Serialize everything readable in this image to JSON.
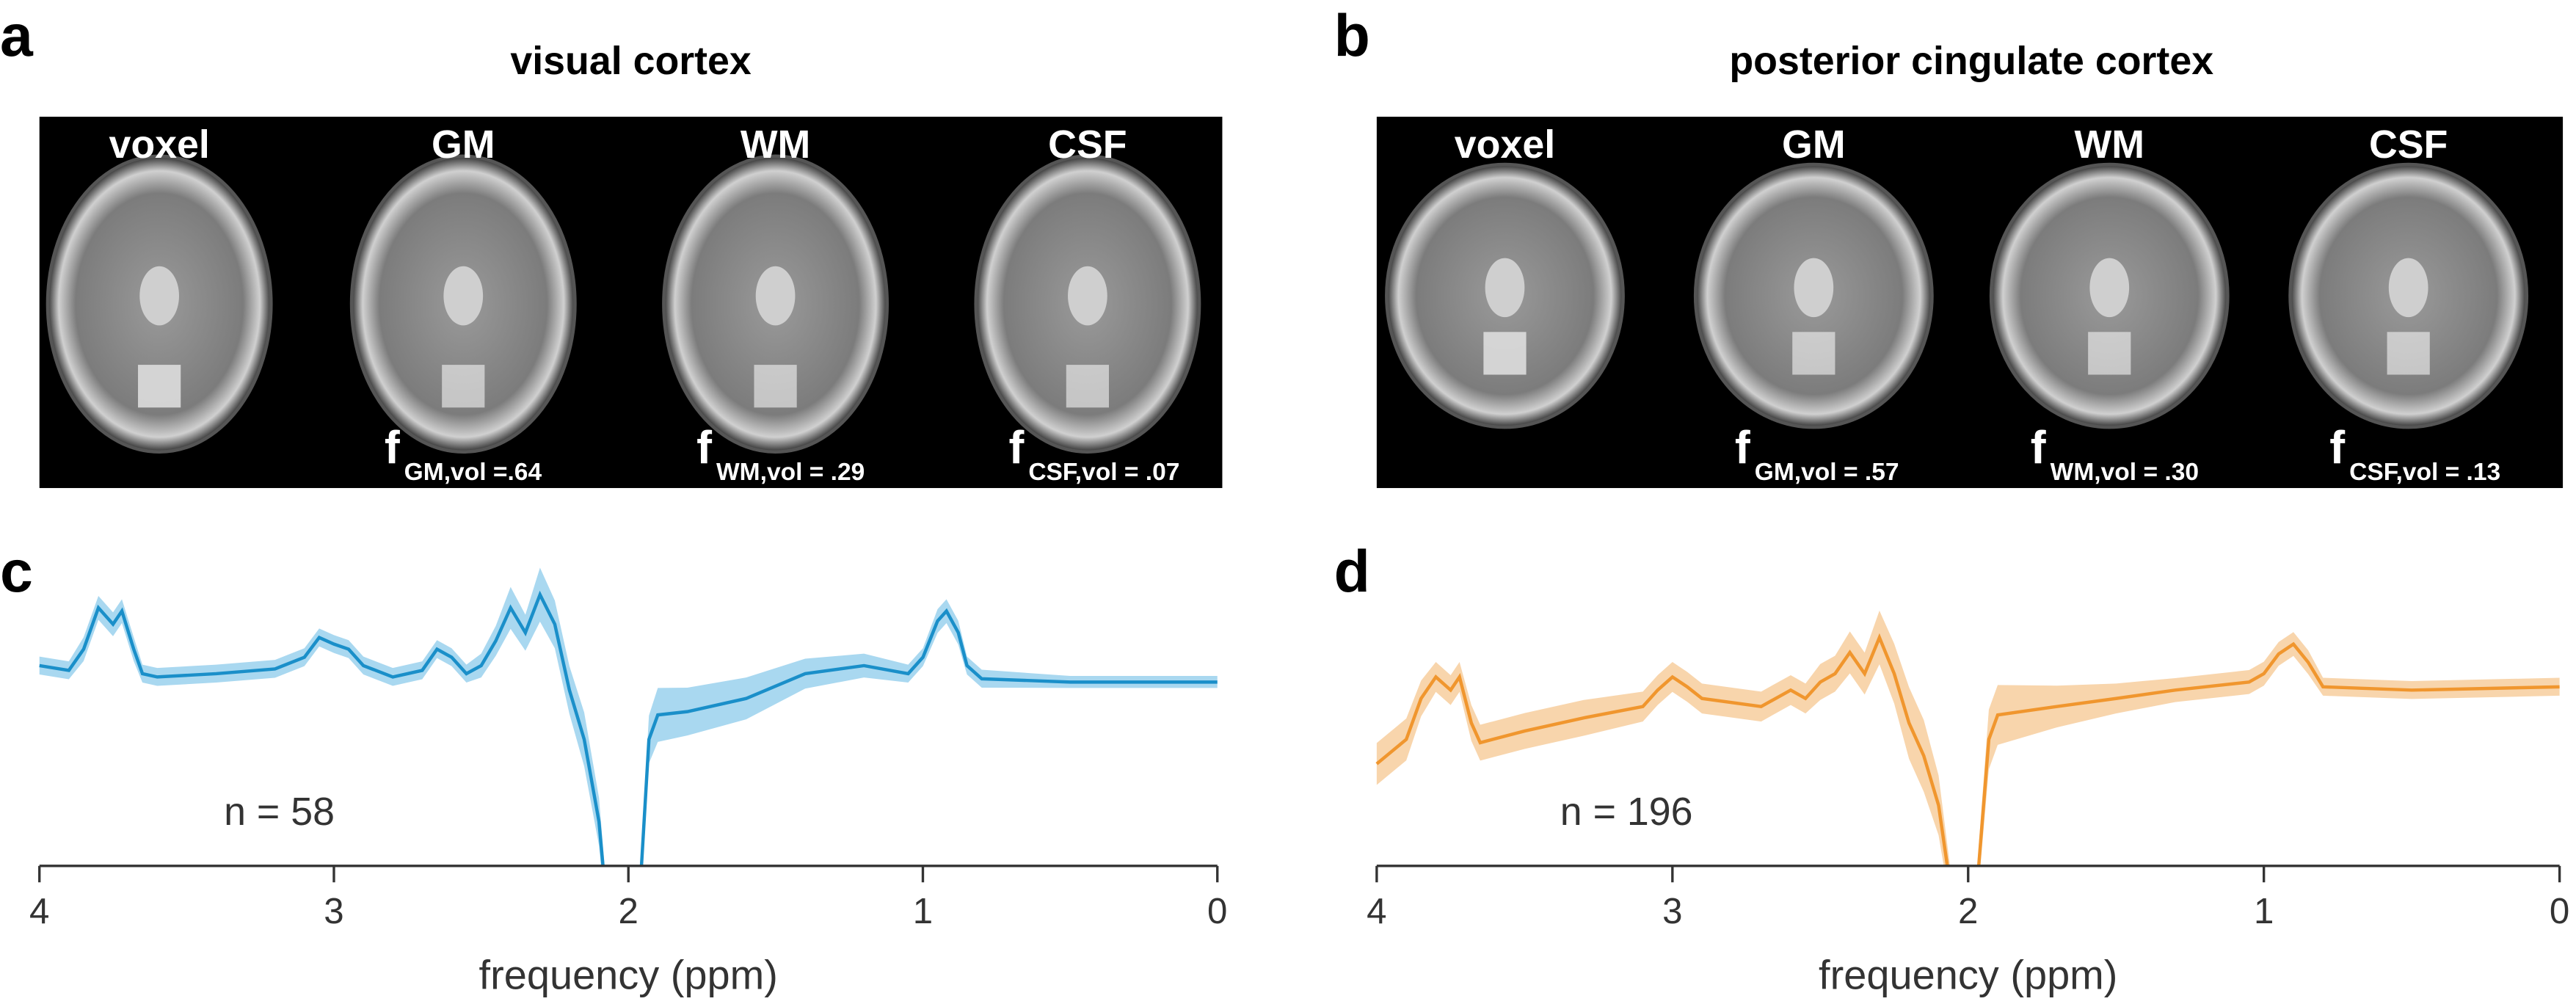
{
  "panels": [
    {
      "letter": "a",
      "title": "visual cortex",
      "image_labels": [
        "voxel",
        "GM",
        "WM",
        "CSF"
      ],
      "fractions": [
        {
          "symbol": "f",
          "subscript": "GM,vol =.64"
        },
        {
          "symbol": "f",
          "subscript": "WM,vol = .29"
        },
        {
          "symbol": "f",
          "subscript": "CSF,vol = .07"
        }
      ]
    },
    {
      "letter": "b",
      "title": "posterior cingulate cortex",
      "image_labels": [
        "voxel",
        "GM",
        "WM",
        "CSF"
      ],
      "fractions": [
        {
          "symbol": "f",
          "subscript": "GM,vol = .57"
        },
        {
          "symbol": "f",
          "subscript": "WM,vol = .30"
        },
        {
          "symbol": "f",
          "subscript": "CSF,vol = .13"
        }
      ]
    }
  ],
  "chart_data": [
    {
      "type": "line",
      "letter": "c",
      "annotation": "n = 58",
      "xlabel": "frequency (ppm)",
      "xlim": [
        4,
        0
      ],
      "xticks": [
        4,
        3,
        2,
        1,
        0
      ],
      "ylim": [
        0,
        100
      ],
      "series": [
        {
          "color": "#1a8fc9",
          "band_color": "#a9d8f0",
          "x": [
            4.0,
            3.9,
            3.85,
            3.8,
            3.75,
            3.72,
            3.68,
            3.65,
            3.6,
            3.4,
            3.2,
            3.1,
            3.05,
            3.0,
            2.95,
            2.9,
            2.8,
            2.7,
            2.65,
            2.6,
            2.55,
            2.5,
            2.45,
            2.4,
            2.35,
            2.3,
            2.25,
            2.2,
            2.15,
            2.1,
            2.08,
            1.96,
            1.93,
            1.9,
            1.8,
            1.6,
            1.4,
            1.2,
            1.05,
            1.0,
            0.95,
            0.92,
            0.88,
            0.85,
            0.8,
            0.5,
            0.0
          ],
          "values": [
            67.0,
            65.4,
            72.5,
            86.3,
            80.8,
            85.2,
            72.5,
            64.3,
            63.2,
            64.3,
            65.9,
            69.8,
            76.4,
            74.2,
            72.5,
            67.0,
            63.2,
            65.4,
            72.5,
            69.8,
            64.3,
            67.0,
            75.3,
            86.3,
            78.0,
            90.7,
            80.8,
            58.8,
            42.3,
            14.8,
            -7.1,
            -7.1,
            42.3,
            50.5,
            51.6,
            56.0,
            64.3,
            67.0,
            64.3,
            69.8,
            81.9,
            85.2,
            78.0,
            67.0,
            62.6,
            61.5,
            61.5
          ],
          "spread": [
            3,
            3,
            4,
            4,
            4,
            4,
            4,
            3,
            3,
            3,
            3,
            3,
            3,
            3,
            3,
            3,
            3,
            3,
            3,
            3,
            3,
            4,
            5,
            7,
            6,
            9,
            8,
            8,
            9,
            8,
            6,
            6,
            8,
            9,
            8,
            7,
            5,
            4,
            3,
            3,
            4,
            4,
            4,
            3,
            3,
            2,
            2
          ]
        }
      ]
    },
    {
      "type": "line",
      "letter": "d",
      "annotation": "n = 196",
      "xlabel": "frequency (ppm)",
      "xlim": [
        4,
        0
      ],
      "xticks": [
        4,
        3,
        2,
        1,
        0
      ],
      "ylim": [
        0,
        100
      ],
      "series": [
        {
          "color": "#f0962e",
          "band_color": "#f8d5ac",
          "x": [
            4.0,
            3.9,
            3.85,
            3.8,
            3.75,
            3.72,
            3.68,
            3.65,
            3.5,
            3.3,
            3.1,
            3.05,
            3.0,
            2.95,
            2.9,
            2.7,
            2.6,
            2.55,
            2.5,
            2.45,
            2.4,
            2.35,
            2.3,
            2.25,
            2.2,
            2.15,
            2.1,
            2.06,
            1.97,
            1.93,
            1.9,
            1.7,
            1.5,
            1.3,
            1.05,
            1.0,
            0.95,
            0.9,
            0.85,
            0.8,
            0.5,
            0.0
          ],
          "values": [
            34.1,
            42.3,
            56.0,
            63.2,
            58.8,
            63.2,
            47.8,
            41.2,
            45.1,
            49.5,
            53.3,
            58.8,
            63.2,
            59.9,
            56.0,
            53.3,
            58.8,
            56.0,
            61.5,
            64.3,
            71.4,
            64.3,
            76.4,
            64.3,
            47.8,
            36.8,
            20.3,
            -7.1,
            -7.1,
            42.3,
            50.5,
            53.3,
            56.0,
            58.8,
            61.5,
            64.3,
            70.9,
            74.2,
            68.1,
            59.9,
            58.8,
            59.9
          ],
          "spread": [
            7,
            7,
            6,
            5,
            5,
            5,
            6,
            6,
            6,
            6,
            5,
            5,
            5,
            5,
            5,
            5,
            5,
            5,
            6,
            6,
            7,
            7,
            9,
            10,
            12,
            12,
            10,
            6,
            6,
            10,
            10,
            7,
            5,
            4,
            4,
            4,
            4,
            4,
            4,
            3,
            3,
            3
          ]
        }
      ]
    }
  ]
}
